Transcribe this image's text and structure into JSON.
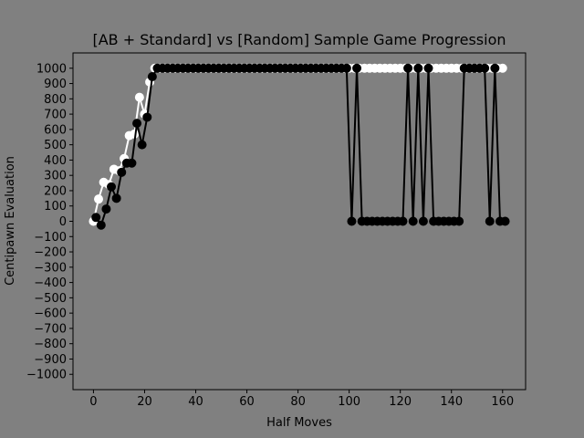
{
  "chart_data": {
    "type": "line",
    "title": "[AB + Standard] vs [Random] Sample Game Progression",
    "xlabel": "Half Moves",
    "ylabel": "Centipawn Evaluation",
    "xlim": [
      -8,
      169
    ],
    "ylim": [
      -1100,
      1100
    ],
    "x_ticks": [
      0,
      20,
      40,
      60,
      80,
      100,
      120,
      140,
      160
    ],
    "y_ticks": [
      1000,
      900,
      800,
      700,
      600,
      500,
      400,
      300,
      200,
      100,
      0,
      -100,
      -200,
      -300,
      -400,
      -500,
      -600,
      -700,
      -800,
      -900,
      -1000
    ],
    "grid": false,
    "series": [
      {
        "color": "#ffffff",
        "marker_edge": "#ffffff",
        "x": [
          0,
          2,
          4,
          6,
          8,
          10,
          12,
          14,
          16,
          18,
          20,
          22,
          24,
          26,
          28,
          30,
          32,
          34,
          36,
          38,
          40,
          42,
          44,
          46,
          48,
          50,
          52,
          54,
          56,
          58,
          60,
          62,
          64,
          66,
          68,
          70,
          72,
          74,
          76,
          78,
          80,
          82,
          84,
          86,
          88,
          90,
          92,
          94,
          96,
          98,
          100,
          102,
          104,
          106,
          108,
          110,
          112,
          114,
          116,
          118,
          120,
          122,
          124,
          126,
          128,
          130,
          132,
          134,
          136,
          138,
          140,
          142,
          144,
          146,
          148,
          150,
          152,
          154,
          156,
          158,
          160
        ],
        "y": [
          0,
          145,
          255,
          240,
          340,
          330,
          410,
          560,
          570,
          810,
          700,
          910,
          1000,
          1000,
          1000,
          1000,
          1000,
          1000,
          1000,
          1000,
          1000,
          1000,
          1000,
          1000,
          1000,
          1000,
          1000,
          1000,
          1000,
          1000,
          1000,
          1000,
          1000,
          1000,
          1000,
          1000,
          1000,
          1000,
          1000,
          1000,
          1000,
          1000,
          1000,
          1000,
          1000,
          1000,
          1000,
          1000,
          1000,
          1000,
          1000,
          1000,
          1000,
          1000,
          1000,
          1000,
          1000,
          1000,
          1000,
          1000,
          1000,
          1000,
          1000,
          1000,
          1000,
          1000,
          1000,
          1000,
          1000,
          1000,
          1000,
          1000,
          1000,
          1000,
          1000,
          1000,
          1000,
          1000,
          1000,
          1000,
          1000
        ]
      },
      {
        "color": "#000000",
        "marker_edge": "#000000",
        "x": [
          1,
          3,
          5,
          7,
          9,
          11,
          13,
          15,
          17,
          19,
          21,
          23,
          25,
          27,
          29,
          31,
          33,
          35,
          37,
          39,
          41,
          43,
          45,
          47,
          49,
          51,
          53,
          55,
          57,
          59,
          61,
          63,
          65,
          67,
          69,
          71,
          73,
          75,
          77,
          79,
          81,
          83,
          85,
          87,
          89,
          91,
          93,
          95,
          97,
          99,
          101,
          103,
          105,
          107,
          109,
          111,
          113,
          115,
          117,
          119,
          121,
          123,
          125,
          127,
          129,
          131,
          133,
          135,
          137,
          139,
          141,
          143,
          145,
          147,
          149,
          151,
          153,
          155,
          157,
          159,
          161
        ],
        "y": [
          25,
          -25,
          80,
          225,
          150,
          320,
          380,
          380,
          640,
          500,
          680,
          945,
          1000,
          1000,
          1000,
          1000,
          1000,
          1000,
          1000,
          1000,
          1000,
          1000,
          1000,
          1000,
          1000,
          1000,
          1000,
          1000,
          1000,
          1000,
          1000,
          1000,
          1000,
          1000,
          1000,
          1000,
          1000,
          1000,
          1000,
          1000,
          1000,
          1000,
          1000,
          1000,
          1000,
          1000,
          1000,
          1000,
          1000,
          1000,
          0,
          1000,
          0,
          0,
          0,
          0,
          0,
          0,
          0,
          0,
          0,
          1000,
          0,
          1000,
          0,
          1000,
          0,
          0,
          0,
          0,
          0,
          0,
          1000,
          1000,
          1000,
          1000,
          1000,
          0,
          1000,
          0,
          0
        ]
      }
    ]
  }
}
